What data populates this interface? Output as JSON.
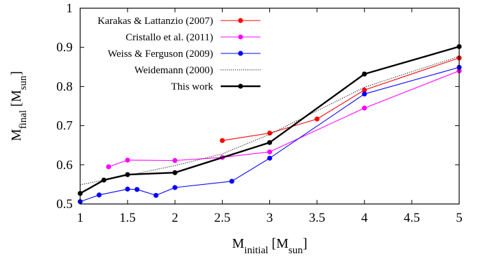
{
  "chart_data": {
    "type": "line",
    "x_axis": {
      "label_main": "M",
      "label_sub": "initial",
      "label_unit_main": "M",
      "label_unit_sub": "sun",
      "range": [
        1,
        5
      ],
      "ticks": [
        1,
        1.5,
        2,
        2.5,
        3,
        3.5,
        4,
        4.5,
        5
      ],
      "tick_labels": [
        "1",
        "1.5",
        "2",
        "2.5",
        "3",
        "3.5",
        "4",
        "4.5",
        "5"
      ]
    },
    "y_axis": {
      "label_main": "M",
      "label_sub": "final",
      "label_unit_main": "M",
      "label_unit_sub": "sun",
      "range": [
        0.5,
        1.0
      ],
      "ticks": [
        0.5,
        0.6,
        0.7,
        0.8,
        0.9,
        1.0
      ],
      "tick_labels": [
        "0.5",
        "0.6",
        "0.7",
        "0.8",
        "0.9",
        "1"
      ]
    },
    "grid": false,
    "legend_position": "top-left",
    "series": [
      {
        "name": "Karakas & Lattanzio (2007)",
        "color": "#ff0000",
        "style": "solid",
        "markers": true,
        "points": [
          [
            2.5,
            0.662
          ],
          [
            3.0,
            0.681
          ],
          [
            3.5,
            0.717
          ],
          [
            4.0,
            0.791
          ],
          [
            5.0,
            0.873
          ]
        ]
      },
      {
        "name": "Cristallo et al. (2011)",
        "color": "#ff00ff",
        "style": "solid",
        "markers": true,
        "points": [
          [
            1.3,
            0.595
          ],
          [
            1.5,
            0.612
          ],
          [
            2.0,
            0.611
          ],
          [
            2.5,
            0.619
          ],
          [
            3.0,
            0.633
          ],
          [
            4.0,
            0.745
          ],
          [
            5.0,
            0.84
          ]
        ]
      },
      {
        "name": "Weiss & Ferguson (2009)",
        "color": "#0000ff",
        "style": "solid",
        "markers": true,
        "points": [
          [
            1.0,
            0.506
          ],
          [
            1.2,
            0.523
          ],
          [
            1.5,
            0.538
          ],
          [
            1.6,
            0.537
          ],
          [
            1.8,
            0.522
          ],
          [
            2.0,
            0.542
          ],
          [
            2.6,
            0.558
          ],
          [
            3.0,
            0.617
          ],
          [
            4.0,
            0.781
          ],
          [
            5.0,
            0.849
          ]
        ]
      },
      {
        "name": "Weidemann (2000)",
        "color": "#000000",
        "style": "dotted",
        "markers": false,
        "points": [
          [
            1.0,
            0.549
          ],
          [
            1.5,
            0.573
          ],
          [
            2.0,
            0.598
          ],
          [
            2.5,
            0.628
          ],
          [
            3.0,
            0.678
          ],
          [
            3.5,
            0.738
          ],
          [
            4.0,
            0.798
          ],
          [
            4.5,
            0.838
          ],
          [
            5.0,
            0.877
          ]
        ]
      },
      {
        "name": "This work",
        "color": "#000000",
        "style": "solid-thick",
        "markers": true,
        "points": [
          [
            1.0,
            0.527
          ],
          [
            1.25,
            0.561
          ],
          [
            1.5,
            0.575
          ],
          [
            2.0,
            0.58
          ],
          [
            3.0,
            0.657
          ],
          [
            4.0,
            0.832
          ],
          [
            5.0,
            0.902
          ]
        ]
      }
    ]
  }
}
